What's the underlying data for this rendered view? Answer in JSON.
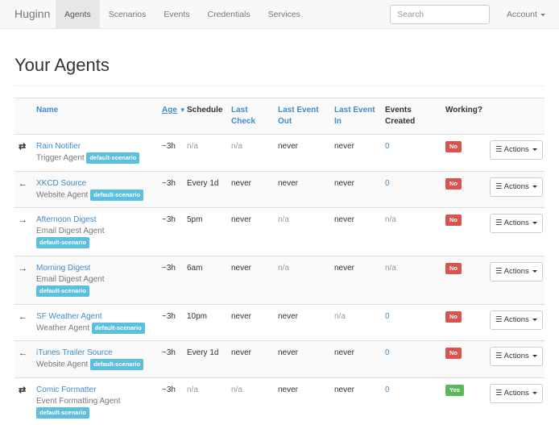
{
  "nav": {
    "brand": "Huginn",
    "items": [
      "Agents",
      "Scenarios",
      "Events",
      "Credentials",
      "Services"
    ],
    "active": "Agents",
    "search_placeholder": "Search",
    "account": "Account"
  },
  "page_title": "Your Agents",
  "table": {
    "headers": {
      "name": "Name",
      "age": "Age",
      "schedule": "Schedule",
      "last_check": "Last Check",
      "last_event_out": "Last Event Out",
      "last_event_in": "Last Event In",
      "events_created": "Events Created",
      "working": "Working?"
    },
    "actions_label": "Actions",
    "rows": [
      {
        "icon": "exchange-icon",
        "name": "Rain Notifier",
        "type": "Trigger Agent",
        "scenario": "default-scenario",
        "age": "~3h",
        "schedule": "n/a",
        "last_check": "n/a",
        "last_event_out": "never",
        "last_event_in": "never",
        "events_created": "0",
        "working": "No"
      },
      {
        "icon": "arrow-left-icon",
        "name": "XKCD Source",
        "type": "Website Agent",
        "scenario": "default-scenario",
        "age": "~3h",
        "schedule": "Every 1d",
        "last_check": "never",
        "last_event_out": "never",
        "last_event_in": "never",
        "events_created": "0",
        "working": "No"
      },
      {
        "icon": "arrow-right-icon",
        "name": "Afternoon Digest",
        "type": "Email Digest Agent",
        "scenario": "default-scenario",
        "age": "~3h",
        "schedule": "5pm",
        "last_check": "never",
        "last_event_out": "n/a",
        "last_event_in": "never",
        "events_created": "n/a",
        "working": "No"
      },
      {
        "icon": "arrow-right-icon",
        "name": "Morning Digest",
        "type": "Email Digest Agent",
        "scenario": "default-scenario",
        "age": "~3h",
        "schedule": "6am",
        "last_check": "never",
        "last_event_out": "n/a",
        "last_event_in": "never",
        "events_created": "n/a",
        "working": "No"
      },
      {
        "icon": "arrow-left-icon",
        "name": "SF Weather Agent",
        "type": "Weather Agent",
        "scenario": "default-scenario",
        "age": "~3h",
        "schedule": "10pm",
        "last_check": "never",
        "last_event_out": "never",
        "last_event_in": "n/a",
        "events_created": "0",
        "working": "No"
      },
      {
        "icon": "arrow-left-icon",
        "name": "iTunes Trailer Source",
        "type": "Website Agent",
        "scenario": "default-scenario",
        "age": "~3h",
        "schedule": "Every 1d",
        "last_check": "never",
        "last_event_out": "never",
        "last_event_in": "never",
        "events_created": "0",
        "working": "No"
      },
      {
        "icon": "exchange-icon",
        "name": "Comic Formatter",
        "type": "Event Formatting Agent",
        "scenario": "default-scenario",
        "age": "~3h",
        "schedule": "n/a",
        "last_check": "n/a",
        "last_event_out": "never",
        "last_event_in": "never",
        "events_created": "0",
        "working": "Yes"
      }
    ]
  },
  "colors": {
    "link": "#428bca",
    "label": "#5bc0de",
    "no": "#d9534f",
    "yes": "#5cb85c"
  }
}
